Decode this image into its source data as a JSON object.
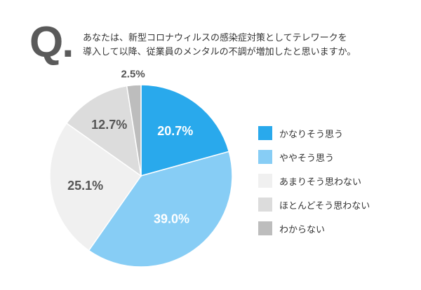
{
  "question": {
    "mark": "Q.",
    "line1": "あなたは、新型コロナウィルスの感染症対策としてテレワークを",
    "line2": "導入して以降、従業員のメンタルの不調が増加したと思いますか。"
  },
  "chart_data": {
    "type": "pie",
    "title": "",
    "legend_position": "right",
    "slices": [
      {
        "label": "かなりそう思う",
        "value": 20.7,
        "display": "20.7%",
        "color": "#29a9ec",
        "text_color": "#ffffff"
      },
      {
        "label": "ややそう思う",
        "value": 39.0,
        "display": "39.0%",
        "color": "#87cdf5",
        "text_color": "#ffffff"
      },
      {
        "label": "あまりそう思わない",
        "value": 25.1,
        "display": "25.1%",
        "color": "#f0f0f0",
        "text_color": "#555555"
      },
      {
        "label": "ほとんどそう思わない",
        "value": 12.7,
        "display": "12.7%",
        "color": "#dcdcdc",
        "text_color": "#555555"
      },
      {
        "label": "わからない",
        "value": 2.5,
        "display": "2.5%",
        "color": "#bdbdbd",
        "text_color": "#555555"
      }
    ]
  }
}
